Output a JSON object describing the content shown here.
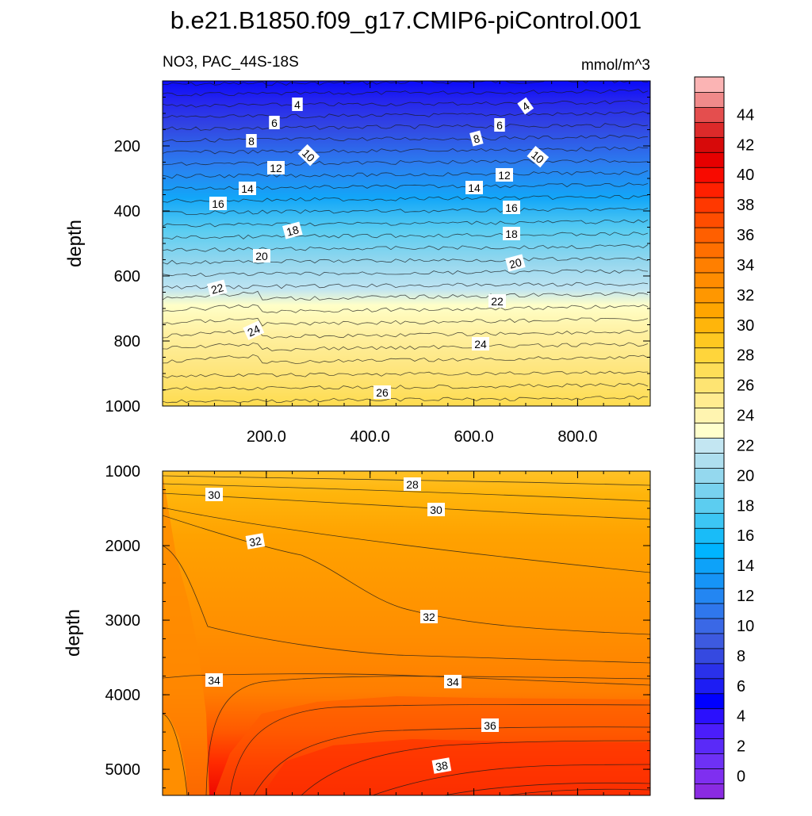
{
  "chart_data": {
    "type": "contour",
    "title": "b.e21.B1850.f09_g17.CMIP6-piControl.001",
    "variable_label": "NO3, PAC_44S-18S",
    "units": "mmol/m^3",
    "ylabel": "depth",
    "xlim": [
      0,
      940
    ],
    "xticks": [
      "200.0",
      "400.0",
      "600.0",
      "800.0"
    ],
    "panels": [
      {
        "name": "upper",
        "ylim": [
          0,
          1000
        ],
        "yticks": [
          "200",
          "400",
          "600",
          "800",
          "1000"
        ],
        "contour_labels": [
          "4",
          "6",
          "8",
          "10",
          "12",
          "14",
          "16",
          "18",
          "20",
          "22",
          "24",
          "26",
          "4",
          "6",
          "8",
          "10",
          "12",
          "14",
          "16",
          "18",
          "20",
          "22",
          "24"
        ]
      },
      {
        "name": "lower",
        "ylim": [
          1000,
          5350
        ],
        "yticks": [
          "1000",
          "2000",
          "3000",
          "4000",
          "5000"
        ],
        "contour_labels": [
          "28",
          "30",
          "30",
          "32",
          "32",
          "34",
          "34",
          "36",
          "38"
        ]
      }
    ],
    "colorbar": {
      "levels": [
        -1,
        0,
        1,
        2,
        3,
        4,
        5,
        6,
        7,
        8,
        9,
        10,
        11,
        12,
        13,
        14,
        15,
        16,
        17,
        18,
        19,
        20,
        21,
        22,
        23,
        24,
        25,
        26,
        27,
        28,
        29,
        30,
        31,
        32,
        33,
        34,
        35,
        36,
        37,
        38,
        39,
        40,
        41,
        42,
        43,
        44,
        45,
        46
      ],
      "tick_labels": [
        "0",
        "2",
        "4",
        "6",
        "8",
        "10",
        "12",
        "14",
        "16",
        "18",
        "20",
        "22",
        "24",
        "26",
        "28",
        "30",
        "32",
        "34",
        "36",
        "38",
        "40",
        "42",
        "44"
      ],
      "colors": [
        "#8a2be2",
        "#7f2ff0",
        "#6e31f5",
        "#5a2af8",
        "#4b1dfb",
        "#2b10fd",
        "#0000ff",
        "#1d1df4",
        "#2a31ea",
        "#3549e0",
        "#3d5ae0",
        "#3a68e6",
        "#2f77ec",
        "#2386f2",
        "#1694f6",
        "#0da2f9",
        "#00b4ff",
        "#19bcf8",
        "#3cc6f4",
        "#5ccdf0",
        "#78d2ef",
        "#94d8ee",
        "#aedfef",
        "#c3e6f2",
        "#ffffcc",
        "#fff4b0",
        "#ffec90",
        "#fee472",
        "#fede58",
        "#ffd53b",
        "#ffc821",
        "#ffb50b",
        "#ffa500",
        "#ff9700",
        "#ff8c00",
        "#ff7f00",
        "#ff6f00",
        "#ff5f00",
        "#ff4d00",
        "#ff3800",
        "#ff2000",
        "#f80a00",
        "#e60000",
        "#d70a0a",
        "#dc2a2a",
        "#e44e4e",
        "#f08a8a",
        "#fbb4b4"
      ]
    }
  }
}
